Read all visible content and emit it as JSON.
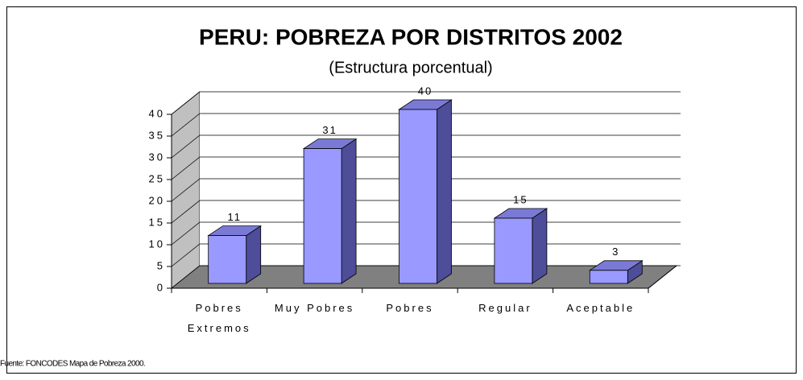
{
  "chart_data": {
    "type": "bar3d",
    "title": "PERU: POBREZA POR DISTRITOS 2002",
    "subtitle": "(Estructura porcentual)",
    "categories": [
      "Pobres Extremos",
      "Muy Pobres",
      "Pobres",
      "Regular",
      "Aceptable"
    ],
    "values": [
      11,
      31,
      40,
      15,
      3
    ],
    "color": "#9999ff",
    "ylim": [
      0,
      40
    ],
    "yticks": [
      0,
      5,
      10,
      15,
      20,
      25,
      30,
      35,
      40
    ],
    "grid": true,
    "source": "Fuente: FONCODES Mapa de Pobreza 2000."
  }
}
